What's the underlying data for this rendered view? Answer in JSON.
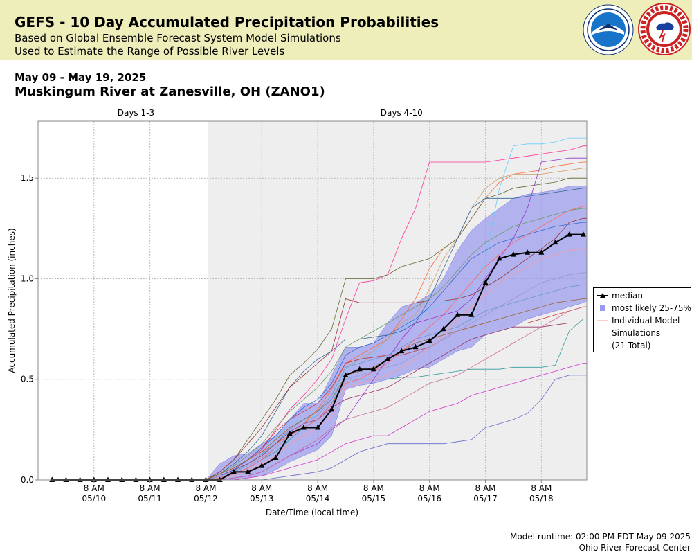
{
  "banner": {
    "title": "GEFS - 10 Day Accumulated Precipitation Probabilities",
    "subtitle1": "Based on Global Ensemble Forecast System Model Simulations",
    "subtitle2": "Used to Estimate the Range of Possible River Levels",
    "background": "#eeeebb",
    "logos": [
      "noaa-logo",
      "national-weather-service-logo"
    ]
  },
  "header": {
    "date_range": "May 09 - May 19, 2025",
    "station": "Muskingum River at Zanesville, OH (ZANO1)"
  },
  "footer": {
    "runtime": "Model runtime: 02:00 PM EDT May 09 2025",
    "center": "Ohio River Forecast Center"
  },
  "legend": {
    "median": "median",
    "band": "most likely 25-75%",
    "individual_line1": "Individual Model",
    "individual_line2": "Simulations",
    "individual_line3": "(21 Total)"
  },
  "colors": {
    "band": "#9999ee",
    "median": "#000000",
    "shade": "#eeeeee",
    "grid": "#bbbbbb"
  },
  "chart_data": {
    "type": "line",
    "xlabel": "Date/Time (local time)",
    "ylabel": "Accumulated Precipitation (inches)",
    "xlim": [
      -1.0,
      8.8125
    ],
    "ylim": [
      0,
      1.783
    ],
    "shade_start": 2.0417,
    "period_labels": [
      {
        "label": "Days 1-3",
        "x": 0.75
      },
      {
        "label": "Days 4-10",
        "x": 5.5
      }
    ],
    "x_ticks": [
      {
        "x": 0,
        "line1": "8 AM",
        "line2": "05/10"
      },
      {
        "x": 1,
        "line1": "8 AM",
        "line2": "05/11"
      },
      {
        "x": 2,
        "line1": "8 AM",
        "line2": "05/12"
      },
      {
        "x": 3,
        "line1": "8 AM",
        "line2": "05/13"
      },
      {
        "x": 4,
        "line1": "8 AM",
        "line2": "05/14"
      },
      {
        "x": 5,
        "line1": "8 AM",
        "line2": "05/15"
      },
      {
        "x": 6,
        "line1": "8 AM",
        "line2": "05/16"
      },
      {
        "x": 7,
        "line1": "8 AM",
        "line2": "05/17"
      },
      {
        "x": 8,
        "line1": "8 AM",
        "line2": "05/18"
      }
    ],
    "y_ticks": [
      0.0,
      0.5,
      1.0,
      1.5
    ],
    "median": {
      "name": "median",
      "x": [
        -0.75,
        -0.5,
        -0.25,
        0,
        0.25,
        0.5,
        0.75,
        1,
        1.25,
        1.5,
        1.75,
        2,
        2.25,
        2.5,
        2.75,
        3,
        3.25,
        3.5,
        3.75,
        4,
        4.25,
        4.5,
        4.75,
        5,
        5.25,
        5.5,
        5.75,
        6,
        6.25,
        6.5,
        6.75,
        7,
        7.25,
        7.5,
        7.75,
        8,
        8.25,
        8.5,
        8.75
      ],
      "values": [
        0,
        0,
        0,
        0,
        0,
        0,
        0,
        0,
        0,
        0,
        0,
        0,
        0,
        0.04,
        0.04,
        0.07,
        0.11,
        0.23,
        0.26,
        0.26,
        0.35,
        0.52,
        0.55,
        0.55,
        0.6,
        0.64,
        0.66,
        0.69,
        0.75,
        0.82,
        0.82,
        0.98,
        1.1,
        1.12,
        1.13,
        1.13,
        1.18,
        1.22,
        1.22
      ]
    },
    "band": {
      "name": "most likely 25-75%",
      "x": [
        2.0,
        2.25,
        2.5,
        2.75,
        3.0,
        3.25,
        3.5,
        3.75,
        4.0,
        4.25,
        4.5,
        4.75,
        5.0,
        5.25,
        5.5,
        5.75,
        6.0,
        6.25,
        6.5,
        6.75,
        7.0,
        7.25,
        7.5,
        7.75,
        8.0,
        8.25,
        8.5,
        8.75,
        8.8125
      ],
      "upper": [
        0,
        0.08,
        0.12,
        0.13,
        0.18,
        0.22,
        0.3,
        0.38,
        0.38,
        0.52,
        0.66,
        0.66,
        0.68,
        0.78,
        0.86,
        0.88,
        0.92,
        1.0,
        1.14,
        1.24,
        1.3,
        1.35,
        1.4,
        1.42,
        1.43,
        1.44,
        1.46,
        1.46,
        1.46
      ],
      "lower": [
        0,
        0,
        0,
        0.01,
        0.02,
        0.05,
        0.09,
        0.12,
        0.15,
        0.22,
        0.45,
        0.47,
        0.48,
        0.5,
        0.52,
        0.55,
        0.56,
        0.6,
        0.64,
        0.66,
        0.72,
        0.74,
        0.76,
        0.8,
        0.82,
        0.84,
        0.86,
        0.88,
        0.89
      ]
    },
    "individual_x": [
      2.0,
      2.25,
      2.5,
      2.75,
      3.0,
      3.25,
      3.5,
      3.75,
      4.0,
      4.25,
      4.5,
      4.75,
      5.0,
      5.25,
      5.5,
      5.75,
      6.0,
      6.25,
      6.5,
      6.75,
      7.0,
      7.25,
      7.5,
      7.75,
      8.0,
      8.25,
      8.5,
      8.75,
      8.8125
    ],
    "individual_series": [
      {
        "color": "#ff3399",
        "values": [
          0,
          0.02,
          0.05,
          0.1,
          0.15,
          0.25,
          0.35,
          0.42,
          0.5,
          0.6,
          0.8,
          0.98,
          0.99,
          1.02,
          1.2,
          1.35,
          1.58,
          1.58,
          1.58,
          1.58,
          1.58,
          1.59,
          1.6,
          1.61,
          1.62,
          1.63,
          1.64,
          1.66,
          1.66
        ]
      },
      {
        "color": "#66ccff",
        "values": [
          0,
          0.01,
          0.03,
          0.08,
          0.12,
          0.2,
          0.28,
          0.3,
          0.32,
          0.4,
          0.55,
          0.6,
          0.62,
          0.7,
          0.75,
          0.8,
          0.85,
          0.88,
          0.9,
          0.95,
          1.1,
          1.45,
          1.66,
          1.67,
          1.67,
          1.68,
          1.7,
          1.7,
          1.7
        ]
      },
      {
        "color": "#ff6633",
        "values": [
          0,
          0.03,
          0.06,
          0.1,
          0.14,
          0.18,
          0.22,
          0.28,
          0.35,
          0.45,
          0.58,
          0.62,
          0.66,
          0.7,
          0.8,
          0.9,
          1.05,
          1.15,
          1.2,
          1.3,
          1.4,
          1.48,
          1.52,
          1.53,
          1.54,
          1.56,
          1.57,
          1.58,
          1.58
        ]
      },
      {
        "color": "#cc9966",
        "values": [
          0,
          0.02,
          0.05,
          0.08,
          0.12,
          0.18,
          0.26,
          0.3,
          0.34,
          0.42,
          0.56,
          0.6,
          0.64,
          0.7,
          0.78,
          0.82,
          0.95,
          1.1,
          1.2,
          1.35,
          1.45,
          1.5,
          1.52,
          1.52,
          1.52,
          1.53,
          1.54,
          1.55,
          1.55
        ]
      },
      {
        "color": "#666633",
        "values": [
          0,
          0.04,
          0.1,
          0.2,
          0.3,
          0.4,
          0.52,
          0.58,
          0.65,
          0.75,
          1.0,
          1.0,
          1.0,
          1.02,
          1.06,
          1.08,
          1.1,
          1.15,
          1.2,
          1.3,
          1.4,
          1.42,
          1.45,
          1.46,
          1.47,
          1.48,
          1.5,
          1.5,
          1.5
        ]
      },
      {
        "color": "#336699",
        "values": [
          0,
          0.03,
          0.08,
          0.14,
          0.22,
          0.34,
          0.46,
          0.54,
          0.6,
          0.64,
          0.7,
          0.7,
          0.71,
          0.72,
          0.74,
          0.78,
          0.9,
          1.05,
          1.2,
          1.35,
          1.4,
          1.4,
          1.4,
          1.41,
          1.42,
          1.43,
          1.44,
          1.45,
          1.45
        ]
      },
      {
        "color": "#9933cc",
        "values": [
          0,
          0,
          0.01,
          0.02,
          0.04,
          0.08,
          0.12,
          0.15,
          0.18,
          0.25,
          0.3,
          0.4,
          0.5,
          0.6,
          0.7,
          0.78,
          0.8,
          0.82,
          0.84,
          0.9,
          1.0,
          1.1,
          1.2,
          1.35,
          1.58,
          1.59,
          1.6,
          1.6,
          1.6
        ]
      },
      {
        "color": "#993333",
        "values": [
          0,
          0.04,
          0.1,
          0.18,
          0.26,
          0.36,
          0.46,
          0.52,
          0.58,
          0.64,
          0.9,
          0.88,
          0.88,
          0.88,
          0.88,
          0.88,
          0.89,
          0.89,
          0.9,
          0.92,
          0.96,
          1.0,
          1.05,
          1.1,
          1.15,
          1.2,
          1.28,
          1.3,
          1.3
        ]
      },
      {
        "color": "#339999",
        "values": [
          0,
          0.01,
          0.03,
          0.06,
          0.1,
          0.14,
          0.2,
          0.26,
          0.3,
          0.38,
          0.5,
          0.5,
          0.5,
          0.5,
          0.51,
          0.51,
          0.52,
          0.53,
          0.54,
          0.55,
          0.55,
          0.55,
          0.56,
          0.56,
          0.56,
          0.57,
          0.74,
          0.8,
          0.8
        ]
      },
      {
        "color": "#cc3333",
        "values": [
          0,
          0.02,
          0.05,
          0.1,
          0.16,
          0.24,
          0.3,
          0.34,
          0.38,
          0.46,
          0.58,
          0.6,
          0.61,
          0.62,
          0.62,
          0.64,
          0.66,
          0.7,
          0.74,
          0.76,
          0.78,
          0.78,
          0.78,
          0.78,
          0.8,
          0.82,
          0.84,
          0.86,
          0.86
        ]
      },
      {
        "color": "#6699cc",
        "values": [
          0,
          0.01,
          0.04,
          0.08,
          0.13,
          0.18,
          0.25,
          0.3,
          0.34,
          0.42,
          0.56,
          0.58,
          0.6,
          0.62,
          0.66,
          0.7,
          0.72,
          0.74,
          0.76,
          0.8,
          0.84,
          0.86,
          0.88,
          0.9,
          0.92,
          0.94,
          0.96,
          0.97,
          0.97
        ]
      },
      {
        "color": "#cc33cc",
        "values": [
          0,
          0,
          0,
          0.01,
          0.02,
          0.04,
          0.06,
          0.08,
          0.1,
          0.14,
          0.18,
          0.2,
          0.22,
          0.22,
          0.26,
          0.3,
          0.34,
          0.36,
          0.38,
          0.42,
          0.44,
          0.46,
          0.48,
          0.5,
          0.52,
          0.54,
          0.56,
          0.58,
          0.58
        ]
      },
      {
        "color": "#6666cc",
        "values": [
          0,
          0,
          0,
          0,
          0,
          0.01,
          0.02,
          0.03,
          0.04,
          0.06,
          0.1,
          0.14,
          0.16,
          0.18,
          0.18,
          0.18,
          0.18,
          0.18,
          0.19,
          0.2,
          0.26,
          0.28,
          0.3,
          0.33,
          0.4,
          0.5,
          0.52,
          0.52,
          0.52
        ]
      },
      {
        "color": "#993366",
        "values": [
          0,
          0.02,
          0.05,
          0.08,
          0.12,
          0.18,
          0.24,
          0.28,
          0.3,
          0.36,
          0.4,
          0.42,
          0.44,
          0.46,
          0.5,
          0.54,
          0.58,
          0.62,
          0.66,
          0.7,
          0.72,
          0.74,
          0.76,
          0.76,
          0.76,
          0.77,
          0.78,
          0.78,
          0.78
        ]
      },
      {
        "color": "#669966",
        "values": [
          0,
          0.03,
          0.07,
          0.12,
          0.18,
          0.26,
          0.34,
          0.4,
          0.46,
          0.54,
          0.66,
          0.7,
          0.74,
          0.78,
          0.82,
          0.86,
          0.9,
          0.96,
          1.04,
          1.12,
          1.18,
          1.22,
          1.26,
          1.28,
          1.3,
          1.32,
          1.34,
          1.35,
          1.35
        ]
      },
      {
        "color": "#ff9999",
        "values": [
          0,
          0.01,
          0.02,
          0.05,
          0.08,
          0.12,
          0.18,
          0.22,
          0.26,
          0.32,
          0.46,
          0.48,
          0.5,
          0.52,
          0.56,
          0.6,
          0.66,
          0.72,
          0.8,
          0.86,
          0.92,
          0.98,
          1.02,
          1.06,
          1.1,
          1.12,
          1.14,
          1.15,
          1.15
        ]
      },
      {
        "color": "#3366cc",
        "values": [
          0,
          0.02,
          0.05,
          0.1,
          0.16,
          0.22,
          0.3,
          0.36,
          0.4,
          0.48,
          0.62,
          0.66,
          0.68,
          0.72,
          0.76,
          0.8,
          0.86,
          0.94,
          1.02,
          1.1,
          1.14,
          1.18,
          1.2,
          1.22,
          1.24,
          1.26,
          1.27,
          1.28,
          1.28
        ]
      },
      {
        "color": "#cc6699",
        "values": [
          0,
          0,
          0.01,
          0.02,
          0.04,
          0.08,
          0.12,
          0.16,
          0.2,
          0.26,
          0.3,
          0.32,
          0.34,
          0.36,
          0.4,
          0.44,
          0.48,
          0.5,
          0.52,
          0.56,
          0.6,
          0.64,
          0.68,
          0.72,
          0.76,
          0.8,
          0.84,
          0.86,
          0.86
        ]
      },
      {
        "color": "#996633",
        "values": [
          0,
          0.03,
          0.06,
          0.1,
          0.14,
          0.2,
          0.26,
          0.3,
          0.34,
          0.4,
          0.52,
          0.54,
          0.56,
          0.6,
          0.64,
          0.68,
          0.7,
          0.72,
          0.74,
          0.76,
          0.78,
          0.8,
          0.82,
          0.84,
          0.86,
          0.88,
          0.89,
          0.9,
          0.9
        ]
      },
      {
        "color": "#ff6666",
        "values": [
          0,
          0.01,
          0.03,
          0.06,
          0.1,
          0.16,
          0.22,
          0.26,
          0.3,
          0.38,
          0.48,
          0.5,
          0.54,
          0.58,
          0.64,
          0.7,
          0.76,
          0.82,
          0.9,
          0.98,
          1.06,
          1.12,
          1.18,
          1.22,
          1.26,
          1.3,
          1.34,
          1.36,
          1.36
        ]
      },
      {
        "color": "#9999cc",
        "values": [
          0,
          0.02,
          0.04,
          0.07,
          0.11,
          0.16,
          0.22,
          0.28,
          0.32,
          0.4,
          0.5,
          0.52,
          0.54,
          0.56,
          0.58,
          0.62,
          0.66,
          0.7,
          0.74,
          0.78,
          0.82,
          0.86,
          0.9,
          0.94,
          0.98,
          1.0,
          1.02,
          1.03,
          1.03
        ]
      }
    ]
  }
}
